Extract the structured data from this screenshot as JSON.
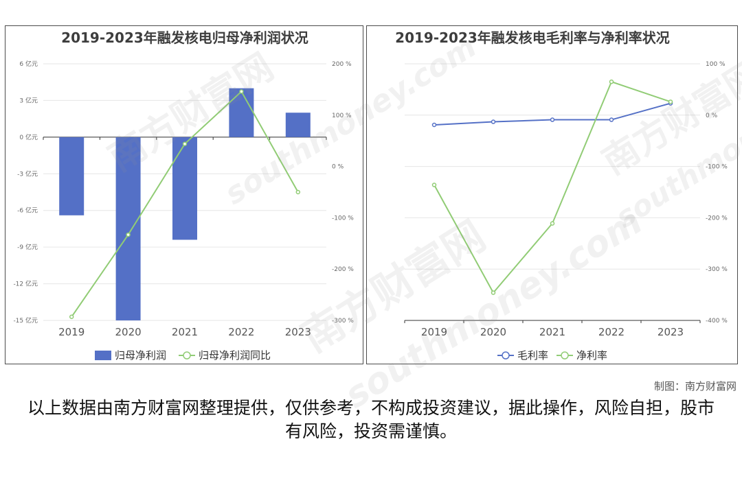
{
  "chart_data": [
    {
      "type": "bar",
      "title": "2019-2023年融发核电归母净利润状况",
      "categories": [
        "2019",
        "2020",
        "2021",
        "2022",
        "2023"
      ],
      "series": [
        {
          "name": "归母净利润",
          "type": "bar",
          "axis": "left",
          "color": "#5470c6",
          "values": [
            -6.4,
            -15.0,
            -8.4,
            4.0,
            2.0
          ]
        },
        {
          "name": "归母净利润同比",
          "type": "line",
          "axis": "right",
          "color": "#91cc75",
          "values": [
            -293,
            -133,
            44,
            146,
            -50
          ]
        }
      ],
      "y_left": {
        "min": -15,
        "max": 6,
        "ticks": [
          6,
          3,
          0,
          -3,
          -6,
          -9,
          -12,
          -15
        ],
        "unit": "亿元"
      },
      "y_right": {
        "min": -300,
        "max": 200,
        "ticks": [
          200,
          100,
          0,
          -100,
          -200,
          -300
        ],
        "unit": "%"
      },
      "grid": true,
      "legend": "bottom"
    },
    {
      "type": "line",
      "title": "2019-2023年融发核电毛利率与净利率状况",
      "categories": [
        "2019",
        "2020",
        "2021",
        "2022",
        "2023"
      ],
      "series": [
        {
          "name": "毛利率",
          "color": "#5470c6",
          "values": [
            -19,
            -13,
            -9,
            -9,
            23
          ]
        },
        {
          "name": "净利率",
          "color": "#91cc75",
          "values": [
            -136,
            -346,
            -211,
            65,
            26
          ]
        }
      ],
      "y_right": {
        "min": -400,
        "max": 100,
        "ticks": [
          100,
          0,
          -100,
          -200,
          -300,
          -400
        ],
        "unit": "%"
      },
      "grid": true,
      "legend": "bottom"
    }
  ],
  "watermark": {
    "cn": "南方财富网",
    "en": "southmoney.com"
  },
  "footer": {
    "credit": "制图：南方财富网",
    "disclaimer": "以上数据由南方财富网整理提供，仅供参考，不构成投资建议，据此操作，风险自担，股市有风险，投资需谨慎。"
  }
}
